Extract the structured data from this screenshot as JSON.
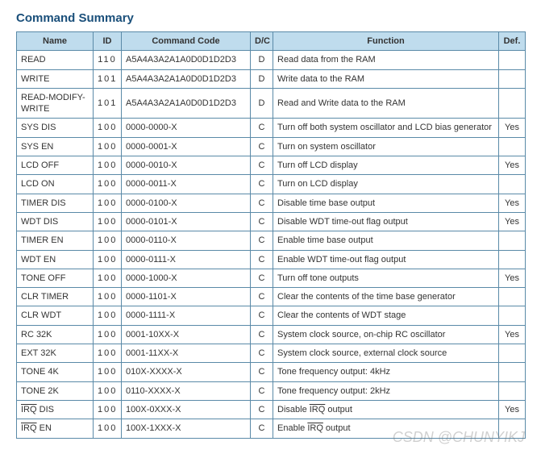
{
  "title": "Command Summary",
  "columns": [
    "Name",
    "ID",
    "Command Code",
    "D/C",
    "Function",
    "Def."
  ],
  "rows": [
    {
      "name": "READ",
      "overline": false,
      "id": "110",
      "code": "A5A4A3A2A1A0D0D1D2D3",
      "dc": "D",
      "func": "Read data from the RAM",
      "def": ""
    },
    {
      "name": "WRITE",
      "overline": false,
      "id": "101",
      "code": "A5A4A3A2A1A0D0D1D2D3",
      "dc": "D",
      "func": "Write data to the RAM",
      "def": ""
    },
    {
      "name": "READ-MODIFY-WRITE",
      "overline": false,
      "id": "101",
      "code": "A5A4A3A2A1A0D0D1D2D3",
      "dc": "D",
      "func": "Read and Write data to the RAM",
      "def": ""
    },
    {
      "name": "SYS DIS",
      "overline": false,
      "id": "100",
      "code": "0000-0000-X",
      "dc": "C",
      "func": "Turn off both system oscillator and LCD bias generator",
      "def": "Yes"
    },
    {
      "name": "SYS EN",
      "overline": false,
      "id": "100",
      "code": "0000-0001-X",
      "dc": "C",
      "func": "Turn on system oscillator",
      "def": ""
    },
    {
      "name": "LCD OFF",
      "overline": false,
      "id": "100",
      "code": "0000-0010-X",
      "dc": "C",
      "func": "Turn off LCD display",
      "def": "Yes"
    },
    {
      "name": "LCD ON",
      "overline": false,
      "id": "100",
      "code": "0000-0011-X",
      "dc": "C",
      "func": "Turn on LCD display",
      "def": ""
    },
    {
      "name": "TIMER DIS",
      "overline": false,
      "id": "100",
      "code": "0000-0100-X",
      "dc": "C",
      "func": "Disable time base output",
      "def": "Yes"
    },
    {
      "name": "WDT DIS",
      "overline": false,
      "id": "100",
      "code": "0000-0101-X",
      "dc": "C",
      "func": "Disable WDT time-out flag output",
      "def": "Yes"
    },
    {
      "name": "TIMER EN",
      "overline": false,
      "id": "100",
      "code": "0000-0110-X",
      "dc": "C",
      "func": "Enable time base output",
      "def": ""
    },
    {
      "name": "WDT EN",
      "overline": false,
      "id": "100",
      "code": "0000-0111-X",
      "dc": "C",
      "func": "Enable WDT time-out flag output",
      "def": ""
    },
    {
      "name": "TONE OFF",
      "overline": false,
      "id": "100",
      "code": "0000-1000-X",
      "dc": "C",
      "func": "Turn off tone outputs",
      "def": "Yes"
    },
    {
      "name": "CLR TIMER",
      "overline": false,
      "id": "100",
      "code": "0000-1101-X",
      "dc": "C",
      "func": "Clear the contents of the time base generator",
      "def": ""
    },
    {
      "name": "CLR WDT",
      "overline": false,
      "id": "100",
      "code": "0000-1111-X",
      "dc": "C",
      "func": "Clear the contents of WDT stage",
      "def": ""
    },
    {
      "name": "RC 32K",
      "overline": false,
      "id": "100",
      "code": "0001-10XX-X",
      "dc": "C",
      "func": "System clock source, on-chip RC oscillator",
      "def": "Yes"
    },
    {
      "name": "EXT 32K",
      "overline": false,
      "id": "100",
      "code": "0001-11XX-X",
      "dc": "C",
      "func": "System clock source, external clock source",
      "def": ""
    },
    {
      "name": "TONE 4K",
      "overline": false,
      "id": "100",
      "code": "010X-XXXX-X",
      "dc": "C",
      "func": "Tone frequency output: 4kHz",
      "def": ""
    },
    {
      "name": "TONE 2K",
      "overline": false,
      "id": "100",
      "code": "0110-XXXX-X",
      "dc": "C",
      "func": "Tone frequency output: 2kHz",
      "def": ""
    },
    {
      "name": "IRQ DIS",
      "overline": true,
      "overlinePart": "IRQ",
      "rest": " DIS",
      "id": "100",
      "code": "100X-0XXX-X",
      "dc": "C",
      "funcPre": "Disable ",
      "funcOver": "IRQ",
      "funcPost": " output",
      "def": "Yes"
    },
    {
      "name": "IRQ EN",
      "overline": true,
      "overlinePart": "IRQ",
      "rest": " EN",
      "id": "100",
      "code": "100X-1XXX-X",
      "dc": "C",
      "funcPre": "Enable ",
      "funcOver": "IRQ",
      "funcPost": " output",
      "def": ""
    }
  ],
  "watermark": "CSDN @CHUNYIKJ",
  "style": {
    "header_bg": "#bfdced",
    "border_color": "#5a8aa8",
    "title_color": "#1a4f7a",
    "text_color": "#333333",
    "font_size": 11,
    "title_font_size": 15
  }
}
